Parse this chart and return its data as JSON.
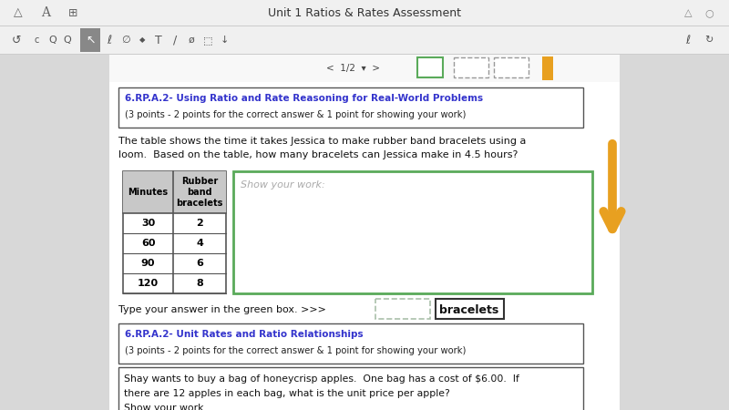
{
  "title": "Unit 1 Ratios & Rates Assessment",
  "section1_header": "6.RP.A.2- Using Ratio and Rate Reasoning for Real-World Problems",
  "section1_subheader": "(3 points - 2 points for the correct answer & 1 point for showing your work)",
  "problem_text_line1": "The table shows the time it takes Jessica to make rubber band bracelets using a",
  "problem_text_line2": "loom.  Based on the table, how many bracelets can Jessica make in 4.5 hours?",
  "table_col1_header": "Minutes",
  "table_col2_header": "Rubber\nband\nbracelets",
  "table_data": [
    [
      30,
      2
    ],
    [
      60,
      4
    ],
    [
      90,
      6
    ],
    [
      120,
      8
    ]
  ],
  "show_work_text": "Show your work:",
  "answer_instruction": "Type your answer in the green box. >>>",
  "answer_label": "bracelets",
  "section2_header": "6.RP.A.2- Unit Rates and Ratio Relationships",
  "section2_subheader": "(3 points - 2 points for the correct answer & 1 point for showing your work)",
  "section2_text_line1": "Shay wants to buy a bag of honeycrisp apples.  One bag has a cost of $6.00.  If",
  "section2_text_line2": "there are 12 apples in each bag, what is the unit price per apple?",
  "section2_text_line3": "Show your work.",
  "link_color": "#3333cc",
  "arrow_color": "#e8a020",
  "green_box_color": "#5aaa5a",
  "table_header_bg": "#c8c8c8",
  "top_bar_bg": "#f0f0f0",
  "side_bg": "#d8d8d8",
  "content_bg": "#ffffff",
  "toolbar_selected_bg": "#888888",
  "nav_bar_bg": "#f5f5f5"
}
